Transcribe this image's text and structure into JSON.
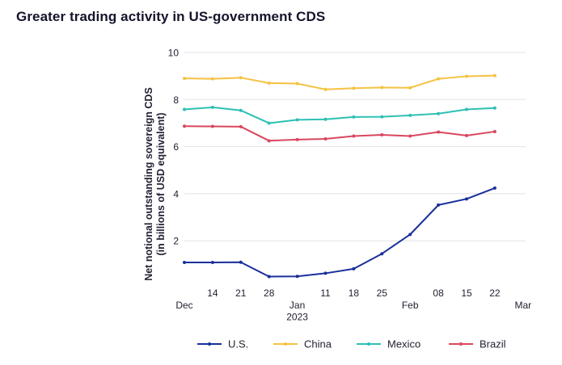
{
  "title": "Greater trading activity in US-government CDS",
  "chart_data": {
    "type": "line",
    "ylabel": [
      "Net notional outstanding sovereign CDS",
      "(in billions of USD equivalent)"
    ],
    "xlabel": "",
    "ylim": [
      0,
      10
    ],
    "yticks": [
      2,
      4,
      6,
      8,
      10
    ],
    "x": [
      "Dec 07",
      "Dec 14",
      "Dec 21",
      "Dec 28",
      "Jan 04",
      "Jan 11",
      "Jan 18",
      "Jan 25",
      "Feb 01",
      "Feb 08",
      "Feb 15",
      "Feb 22"
    ],
    "xticks": [
      {
        "label": "Dec",
        "sub": "",
        "pos": 0
      },
      {
        "label": "14",
        "sub": "",
        "pos": 1
      },
      {
        "label": "21",
        "sub": "",
        "pos": 2
      },
      {
        "label": "28",
        "sub": "",
        "pos": 3
      },
      {
        "label": "Jan",
        "sub": "2023",
        "pos": 4
      },
      {
        "label": "11",
        "sub": "",
        "pos": 5
      },
      {
        "label": "18",
        "sub": "",
        "pos": 6
      },
      {
        "label": "25",
        "sub": "",
        "pos": 7
      },
      {
        "label": "Feb",
        "sub": "",
        "pos": 8
      },
      {
        "label": "08",
        "sub": "",
        "pos": 9
      },
      {
        "label": "15",
        "sub": "",
        "pos": 10
      },
      {
        "label": "22",
        "sub": "",
        "pos": 11
      },
      {
        "label": "Mar",
        "sub": "",
        "pos": 12
      }
    ],
    "grid": true,
    "legend_position": "bottom",
    "series": [
      {
        "name": "U.S.",
        "color": "#1a2f9b",
        "values": [
          1.08,
          1.08,
          1.09,
          0.48,
          0.49,
          0.62,
          0.81,
          1.45,
          2.27,
          3.52,
          3.78,
          4.24
        ]
      },
      {
        "name": "China",
        "color": "#f5c242",
        "values": [
          8.9,
          8.88,
          8.93,
          8.7,
          8.68,
          8.43,
          8.48,
          8.51,
          8.5,
          8.88,
          8.99,
          9.02
        ]
      },
      {
        "name": "Mexico",
        "color": "#2ec0b4",
        "values": [
          7.58,
          7.67,
          7.54,
          7.0,
          7.14,
          7.16,
          7.26,
          7.27,
          7.33,
          7.4,
          7.58,
          7.64
        ]
      },
      {
        "name": "Brazil",
        "color": "#d9475e",
        "values": [
          6.87,
          6.86,
          6.85,
          6.25,
          6.3,
          6.33,
          6.45,
          6.5,
          6.45,
          6.62,
          6.47,
          6.64
        ]
      }
    ]
  }
}
